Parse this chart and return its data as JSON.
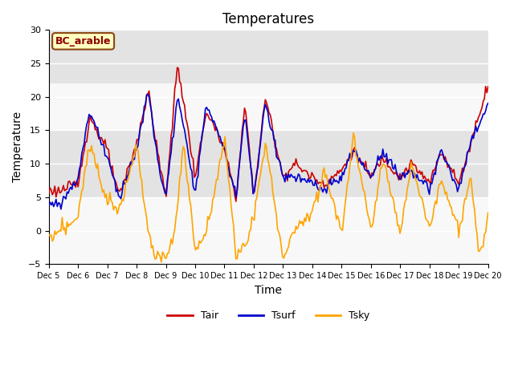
{
  "title": "Temperatures",
  "xlabel": "Time",
  "ylabel": "Temperature",
  "ylim": [
    -5,
    30
  ],
  "yticks": [
    -5,
    0,
    5,
    10,
    15,
    20,
    25,
    30
  ],
  "n_days": 15,
  "start_day": 5,
  "colors": {
    "Tair": "#cc0000",
    "Tsurf": "#0000cc",
    "Tsky": "#ffa500"
  },
  "legend_entries": [
    "Tair",
    "Tsurf",
    "Tsky"
  ],
  "annotation_text": "BC_arable",
  "annotation_bg": "#ffffc0",
  "annotation_border": "#8b4513",
  "bg_light": "#e8e8e8",
  "bg_white": "#ffffff",
  "title_fontsize": 12,
  "label_fontsize": 10,
  "tick_fontsize": 8,
  "line_width": 1.2
}
